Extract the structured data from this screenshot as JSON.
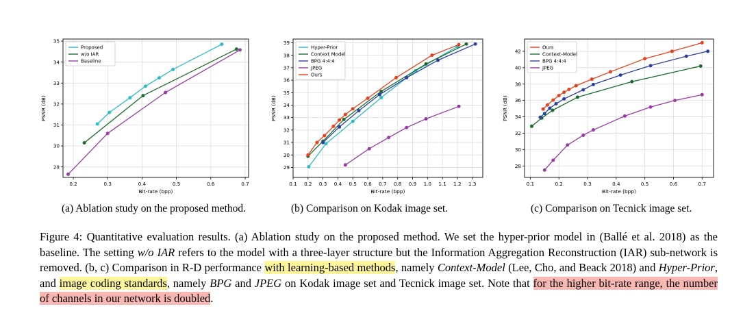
{
  "subcaptions": [
    "(a) Ablation study on the proposed method.",
    "(b) Comparison on Kodak image set.",
    "(c) Comparison on Tecnick image set."
  ],
  "caption": {
    "p1": "Figure 4: Quantitative evaluation results. (a) Ablation study on the proposed method. We set the hyper-prior model in (Ballé et al. 2018) as the baseline. The setting ",
    "i1": "w/o IAR",
    "p2": " refers to the model with a three-layer structure but the Information Aggregation Reconstruction (IAR) sub-network is removed. (b, c) Comparison in R-D performance ",
    "h1": "with learning-based methods",
    "p3": ", namely ",
    "i2": "Context-Model",
    "p4": " (Lee, Cho, and Beack 2018) and ",
    "i3": "Hyper-Prior",
    "p5": ", and ",
    "h2": "image coding standards",
    "p6": ", namely ",
    "i4": "BPG",
    "p7": " and ",
    "i5": "JPEG",
    "p8": " on Kodak image set and Tecnick image set. Note that ",
    "h3": "for the higher bit-rate range, the number of channels in our network is doubled",
    "p9": "."
  },
  "chart_data": [
    {
      "type": "line",
      "xlabel": "Bit-rate (bpp)",
      "ylabel": "PSNR (dB)",
      "xlim": [
        0.17,
        0.71
      ],
      "ylim": [
        28.5,
        35.1
      ],
      "xticks": [
        "0.2",
        "0.3",
        "0.4",
        "0.5",
        "0.6",
        "0.7"
      ],
      "yticks": [
        "29",
        "30",
        "31",
        "32",
        "33",
        "34",
        "35"
      ],
      "legend": "top-left",
      "grid": true,
      "series": [
        {
          "name": "Proposed",
          "color": "#2bbcc8",
          "x": [
            0.27,
            0.305,
            0.365,
            0.41,
            0.45,
            0.49,
            0.632
          ],
          "y": [
            31.05,
            31.6,
            32.3,
            32.85,
            33.25,
            33.65,
            34.85
          ]
        },
        {
          "name": "w/o IAR",
          "color": "#1a6e2a",
          "x": [
            0.232,
            0.403,
            0.675
          ],
          "y": [
            30.15,
            32.4,
            34.62
          ]
        },
        {
          "name": "Baseline",
          "color": "#9a3aa8",
          "x": [
            0.185,
            0.3,
            0.468,
            0.685
          ],
          "y": [
            28.65,
            30.6,
            32.55,
            34.58
          ]
        }
      ]
    },
    {
      "type": "line",
      "xlabel": "Bit-rate (bpp)",
      "ylabel": "PSNR (dB)",
      "xlim": [
        0.1,
        1.37
      ],
      "ylim": [
        28.2,
        39.3
      ],
      "xticks": [
        "0.1",
        "0.2",
        "0.3",
        "0.4",
        "0.5",
        "0.6",
        "0.7",
        "0.8",
        "0.9",
        "1.0",
        "1.1",
        "1.2",
        "1.3"
      ],
      "yticks": [
        "29",
        "30",
        "31",
        "32",
        "33",
        "34",
        "35",
        "36",
        "37",
        "38",
        "39"
      ],
      "legend": "top-left",
      "grid": true,
      "series": [
        {
          "name": "Hyper-Prior",
          "color": "#2bbcc8",
          "x": [
            0.205,
            0.32,
            0.5,
            0.69,
            0.92,
            1.2
          ],
          "y": [
            29.05,
            30.9,
            32.7,
            34.6,
            36.75,
            38.7
          ]
        },
        {
          "name": "Context Model",
          "color": "#1a6e2a",
          "x": [
            0.2,
            0.3,
            0.44,
            0.69,
            0.99,
            1.26
          ],
          "y": [
            29.9,
            31.1,
            32.85,
            35.1,
            37.3,
            38.9
          ]
        },
        {
          "name": "BPG 4:4:4",
          "color": "#2a40a0",
          "x": [
            0.3,
            0.41,
            0.54,
            0.68,
            0.86,
            1.07,
            1.32
          ],
          "y": [
            31.0,
            32.25,
            33.55,
            34.85,
            36.2,
            37.6,
            38.9
          ]
        },
        {
          "name": "JPEG",
          "color": "#9a3aa8",
          "x": [
            0.45,
            0.61,
            0.74,
            0.86,
            0.99,
            1.21
          ],
          "y": [
            29.2,
            30.5,
            31.4,
            32.2,
            32.9,
            33.9
          ]
        },
        {
          "name": "Ours",
          "color": "#e8401c",
          "x": [
            0.2,
            0.26,
            0.31,
            0.37,
            0.41,
            0.45,
            0.5,
            0.6,
            0.79,
            1.03,
            1.21
          ],
          "y": [
            30.0,
            31.0,
            31.55,
            32.3,
            32.8,
            33.25,
            33.7,
            34.55,
            36.2,
            38.0,
            38.85
          ]
        }
      ]
    },
    {
      "type": "line",
      "xlabel": "Bit-rate (bpp)",
      "ylabel": "PSNR (dB)",
      "xlim": [
        0.08,
        0.74
      ],
      "ylim": [
        26.6,
        43.5
      ],
      "xticks": [
        "0.1",
        "0.2",
        "0.3",
        "0.4",
        "0.5",
        "0.6",
        "0.7"
      ],
      "yticks": [
        "28",
        "30",
        "32",
        "34",
        "36",
        "38",
        "40",
        "42"
      ],
      "legend": "top-left",
      "grid": true,
      "series": [
        {
          "name": "Ours",
          "color": "#e8401c",
          "x": [
            0.145,
            0.16,
            0.18,
            0.2,
            0.218,
            0.235,
            0.26,
            0.315,
            0.38,
            0.5,
            0.595,
            0.7
          ],
          "y": [
            34.95,
            35.45,
            36.05,
            36.6,
            37.0,
            37.35,
            37.8,
            38.6,
            39.5,
            41.1,
            42.0,
            43.05
          ]
        },
        {
          "name": "Context-Model",
          "color": "#1a6e2a",
          "x": [
            0.105,
            0.14,
            0.178,
            0.265,
            0.455,
            0.695
          ],
          "y": [
            32.85,
            33.85,
            34.8,
            36.4,
            38.3,
            40.2
          ]
        },
        {
          "name": "BPG 4:4:4",
          "color": "#2a40a0",
          "x": [
            0.135,
            0.15,
            0.168,
            0.19,
            0.218,
            0.285,
            0.32,
            0.415,
            0.52,
            0.645,
            0.72
          ],
          "y": [
            33.95,
            34.4,
            35.05,
            35.6,
            36.2,
            37.3,
            37.95,
            39.1,
            40.25,
            41.4,
            42.0
          ]
        },
        {
          "name": "JPEG",
          "color": "#9a3aa8",
          "x": [
            0.15,
            0.18,
            0.23,
            0.285,
            0.32,
            0.43,
            0.52,
            0.605,
            0.7
          ],
          "y": [
            27.5,
            28.7,
            30.55,
            31.75,
            32.4,
            34.1,
            35.2,
            36.0,
            36.7
          ]
        }
      ]
    }
  ]
}
